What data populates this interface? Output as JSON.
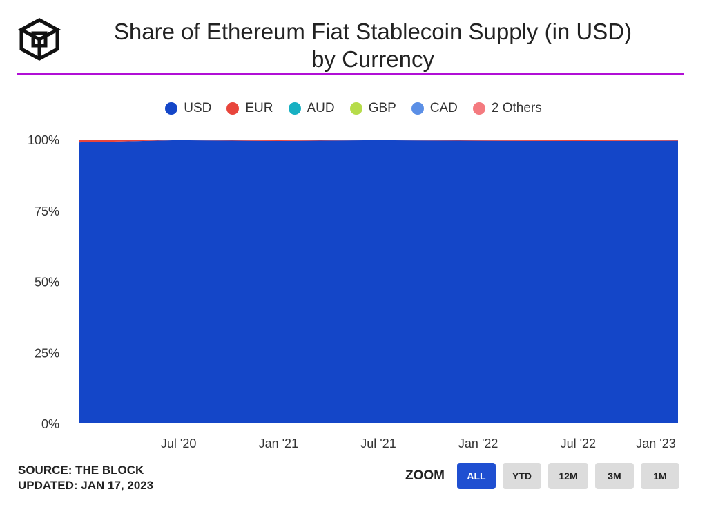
{
  "title": "Share of Ethereum Fiat Stablecoin Supply (in USD) by Currency",
  "legend": [
    {
      "label": "USD",
      "color": "#1446c8"
    },
    {
      "label": "EUR",
      "color": "#e8453c"
    },
    {
      "label": "AUD",
      "color": "#17b0c2"
    },
    {
      "label": "GBP",
      "color": "#b6dc4a"
    },
    {
      "label": "CAD",
      "color": "#5b8fe6"
    },
    {
      "label": "2 Others",
      "color": "#f47a7f"
    }
  ],
  "footer": {
    "source": "SOURCE: THE BLOCK",
    "updated": "UPDATED: JAN 17, 2023"
  },
  "zoom": {
    "label": "ZOOM",
    "buttons": [
      "ALL",
      "YTD",
      "12M",
      "3M",
      "1M"
    ],
    "active": "ALL"
  },
  "chart_data": {
    "type": "area",
    "stacked": true,
    "percent": true,
    "x": [
      "2020-01",
      "2020-07",
      "2021-01",
      "2021-07",
      "2022-01",
      "2022-07",
      "2023-01"
    ],
    "x_tick_labels": [
      "Jul '20",
      "Jan '21",
      "Jul '21",
      "Jan '22",
      "Jul '22",
      "Jan '23"
    ],
    "y_tick_labels": [
      "100%",
      "75%",
      "50%",
      "25%",
      "0%"
    ],
    "ylim": [
      0,
      100
    ],
    "series": [
      {
        "name": "USD",
        "values": [
          99.0,
          99.8,
          99.5,
          99.8,
          99.6,
          99.5,
          99.6
        ]
      },
      {
        "name": "EUR",
        "values": [
          0.9,
          0.2,
          0.5,
          0.2,
          0.4,
          0.5,
          0.4
        ]
      },
      {
        "name": "AUD",
        "values": [
          0,
          0,
          0,
          0,
          0,
          0,
          0
        ]
      },
      {
        "name": "GBP",
        "values": [
          0,
          0,
          0,
          0,
          0,
          0,
          0
        ]
      },
      {
        "name": "CAD",
        "values": [
          0,
          0,
          0,
          0,
          0,
          0,
          0
        ]
      },
      {
        "name": "2 Others",
        "values": [
          0.1,
          0,
          0,
          0,
          0,
          0,
          0
        ]
      }
    ],
    "legend_position": "top-center",
    "grid": false
  }
}
